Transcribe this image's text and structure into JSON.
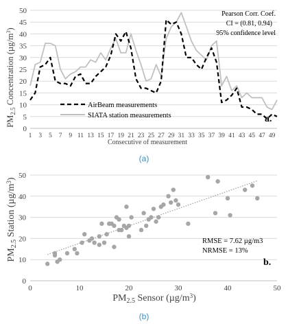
{
  "chart_data": [
    {
      "type": "line",
      "panel_letter": "a.",
      "caption": "(a)",
      "xlabel": "Consecutive of measurement",
      "ylabel": "PM2.5 Concentration (µg/m3)",
      "ylim": [
        0,
        50
      ],
      "y_ticks": [
        0,
        5,
        10,
        15,
        20,
        25,
        30,
        35,
        40,
        45,
        50
      ],
      "xlim": [
        1,
        50
      ],
      "x_ticks": [
        1,
        3,
        5,
        7,
        9,
        11,
        13,
        15,
        17,
        19,
        21,
        23,
        25,
        27,
        29,
        31,
        33,
        35,
        37,
        39,
        41,
        43,
        45,
        47,
        49
      ],
      "grid": "horizontal",
      "legend_position": "bottom-left",
      "annotations": [
        "Pearson Corr. Coef.",
        "CI = (0.81, 0.94)",
        "95% confidence level"
      ],
      "series": [
        {
          "name": "AirBeam measurements",
          "style": "dashed",
          "color": "#000000",
          "x": [
            1,
            2,
            3,
            4,
            5,
            6,
            7,
            8,
            9,
            10,
            11,
            12,
            13,
            14,
            15,
            16,
            17,
            18,
            19,
            20,
            21,
            22,
            23,
            24,
            25,
            26,
            27,
            28,
            29,
            30,
            31,
            32,
            33,
            34,
            35,
            36,
            37,
            38,
            39,
            40,
            41,
            42,
            43,
            44,
            45,
            46,
            47,
            48,
            49,
            50
          ],
          "values": [
            12,
            15,
            26,
            27,
            30,
            20,
            19,
            19,
            18,
            22,
            23,
            19,
            19,
            22,
            24,
            26,
            31,
            40,
            37,
            41,
            34,
            21,
            17,
            17,
            16,
            15,
            20,
            46,
            44,
            45,
            40,
            30,
            30,
            27,
            25,
            30,
            34,
            28,
            11,
            12,
            14,
            17,
            9,
            9,
            8,
            6,
            6,
            4,
            6,
            5
          ]
        },
        {
          "name": "SIATA station measurements",
          "style": "solid",
          "color": "#c0c0c0",
          "x": [
            1,
            2,
            3,
            4,
            5,
            6,
            7,
            8,
            9,
            10,
            11,
            12,
            13,
            14,
            15,
            16,
            17,
            18,
            19,
            20,
            21,
            22,
            23,
            24,
            25,
            26,
            27,
            28,
            29,
            30,
            31,
            32,
            33,
            34,
            35,
            36,
            37,
            38,
            39,
            40,
            41,
            42,
            43,
            44,
            45,
            46,
            47,
            48,
            49,
            50
          ],
          "values": [
            18,
            27,
            28,
            36,
            36,
            35,
            25,
            21,
            23,
            24,
            26,
            26,
            29,
            28,
            32,
            29,
            34,
            38,
            32,
            32,
            40,
            33,
            27,
            20,
            21,
            27,
            22,
            38,
            43,
            45,
            49,
            43,
            37,
            33,
            31,
            29,
            35,
            37,
            18,
            22,
            16,
            18,
            13,
            15,
            13,
            13,
            13,
            9,
            8,
            12
          ]
        }
      ]
    },
    {
      "type": "scatter",
      "panel_letter": "b.",
      "caption": "(b)",
      "xlabel": "PM2.5 Sensor (µg/m3)",
      "ylabel": "PM2.5 Station (µg/m3)",
      "xlim": [
        0,
        50
      ],
      "x_ticks": [
        0,
        10,
        20,
        30,
        40,
        50
      ],
      "ylim": [
        0,
        50
      ],
      "y_ticks": [
        0,
        10,
        20,
        30,
        40,
        50
      ],
      "grid": "horizontal",
      "trendline": "linear (dotted)",
      "annotations": [
        "RMSE = 7.62 µg/m3",
        "NRMSE = 13%"
      ],
      "points": [
        [
          3.5,
          8
        ],
        [
          5,
          12
        ],
        [
          5,
          13
        ],
        [
          5.5,
          9
        ],
        [
          6,
          10
        ],
        [
          7.5,
          13
        ],
        [
          9,
          15
        ],
        [
          9.5,
          13
        ],
        [
          10.5,
          18
        ],
        [
          11,
          22
        ],
        [
          12,
          19
        ],
        [
          12.5,
          20
        ],
        [
          13,
          18
        ],
        [
          14,
          17
        ],
        [
          14,
          21
        ],
        [
          14.5,
          27
        ],
        [
          15,
          18
        ],
        [
          15.5,
          22
        ],
        [
          16,
          27
        ],
        [
          16.5,
          27
        ],
        [
          17,
          26
        ],
        [
          17,
          16
        ],
        [
          17.5,
          30
        ],
        [
          18,
          24
        ],
        [
          18,
          29
        ],
        [
          18.5,
          24
        ],
        [
          19,
          26
        ],
        [
          19.5,
          25
        ],
        [
          19.5,
          35
        ],
        [
          20,
          21
        ],
        [
          20,
          26
        ],
        [
          20.5,
          30
        ],
        [
          22.5,
          24
        ],
        [
          23,
          32
        ],
        [
          23.5,
          26
        ],
        [
          24,
          29
        ],
        [
          24.5,
          30
        ],
        [
          25,
          34
        ],
        [
          25.5,
          28
        ],
        [
          26,
          30
        ],
        [
          26.5,
          35
        ],
        [
          27,
          36
        ],
        [
          28,
          40
        ],
        [
          28.5,
          37
        ],
        [
          29,
          43
        ],
        [
          29.5,
          38
        ],
        [
          30,
          36
        ],
        [
          32,
          27
        ],
        [
          36,
          49
        ],
        [
          37.5,
          32
        ],
        [
          38,
          47
        ],
        [
          40,
          39
        ],
        [
          40.5,
          31
        ],
        [
          43.5,
          43
        ],
        [
          45,
          45
        ],
        [
          46,
          39
        ]
      ]
    }
  ]
}
